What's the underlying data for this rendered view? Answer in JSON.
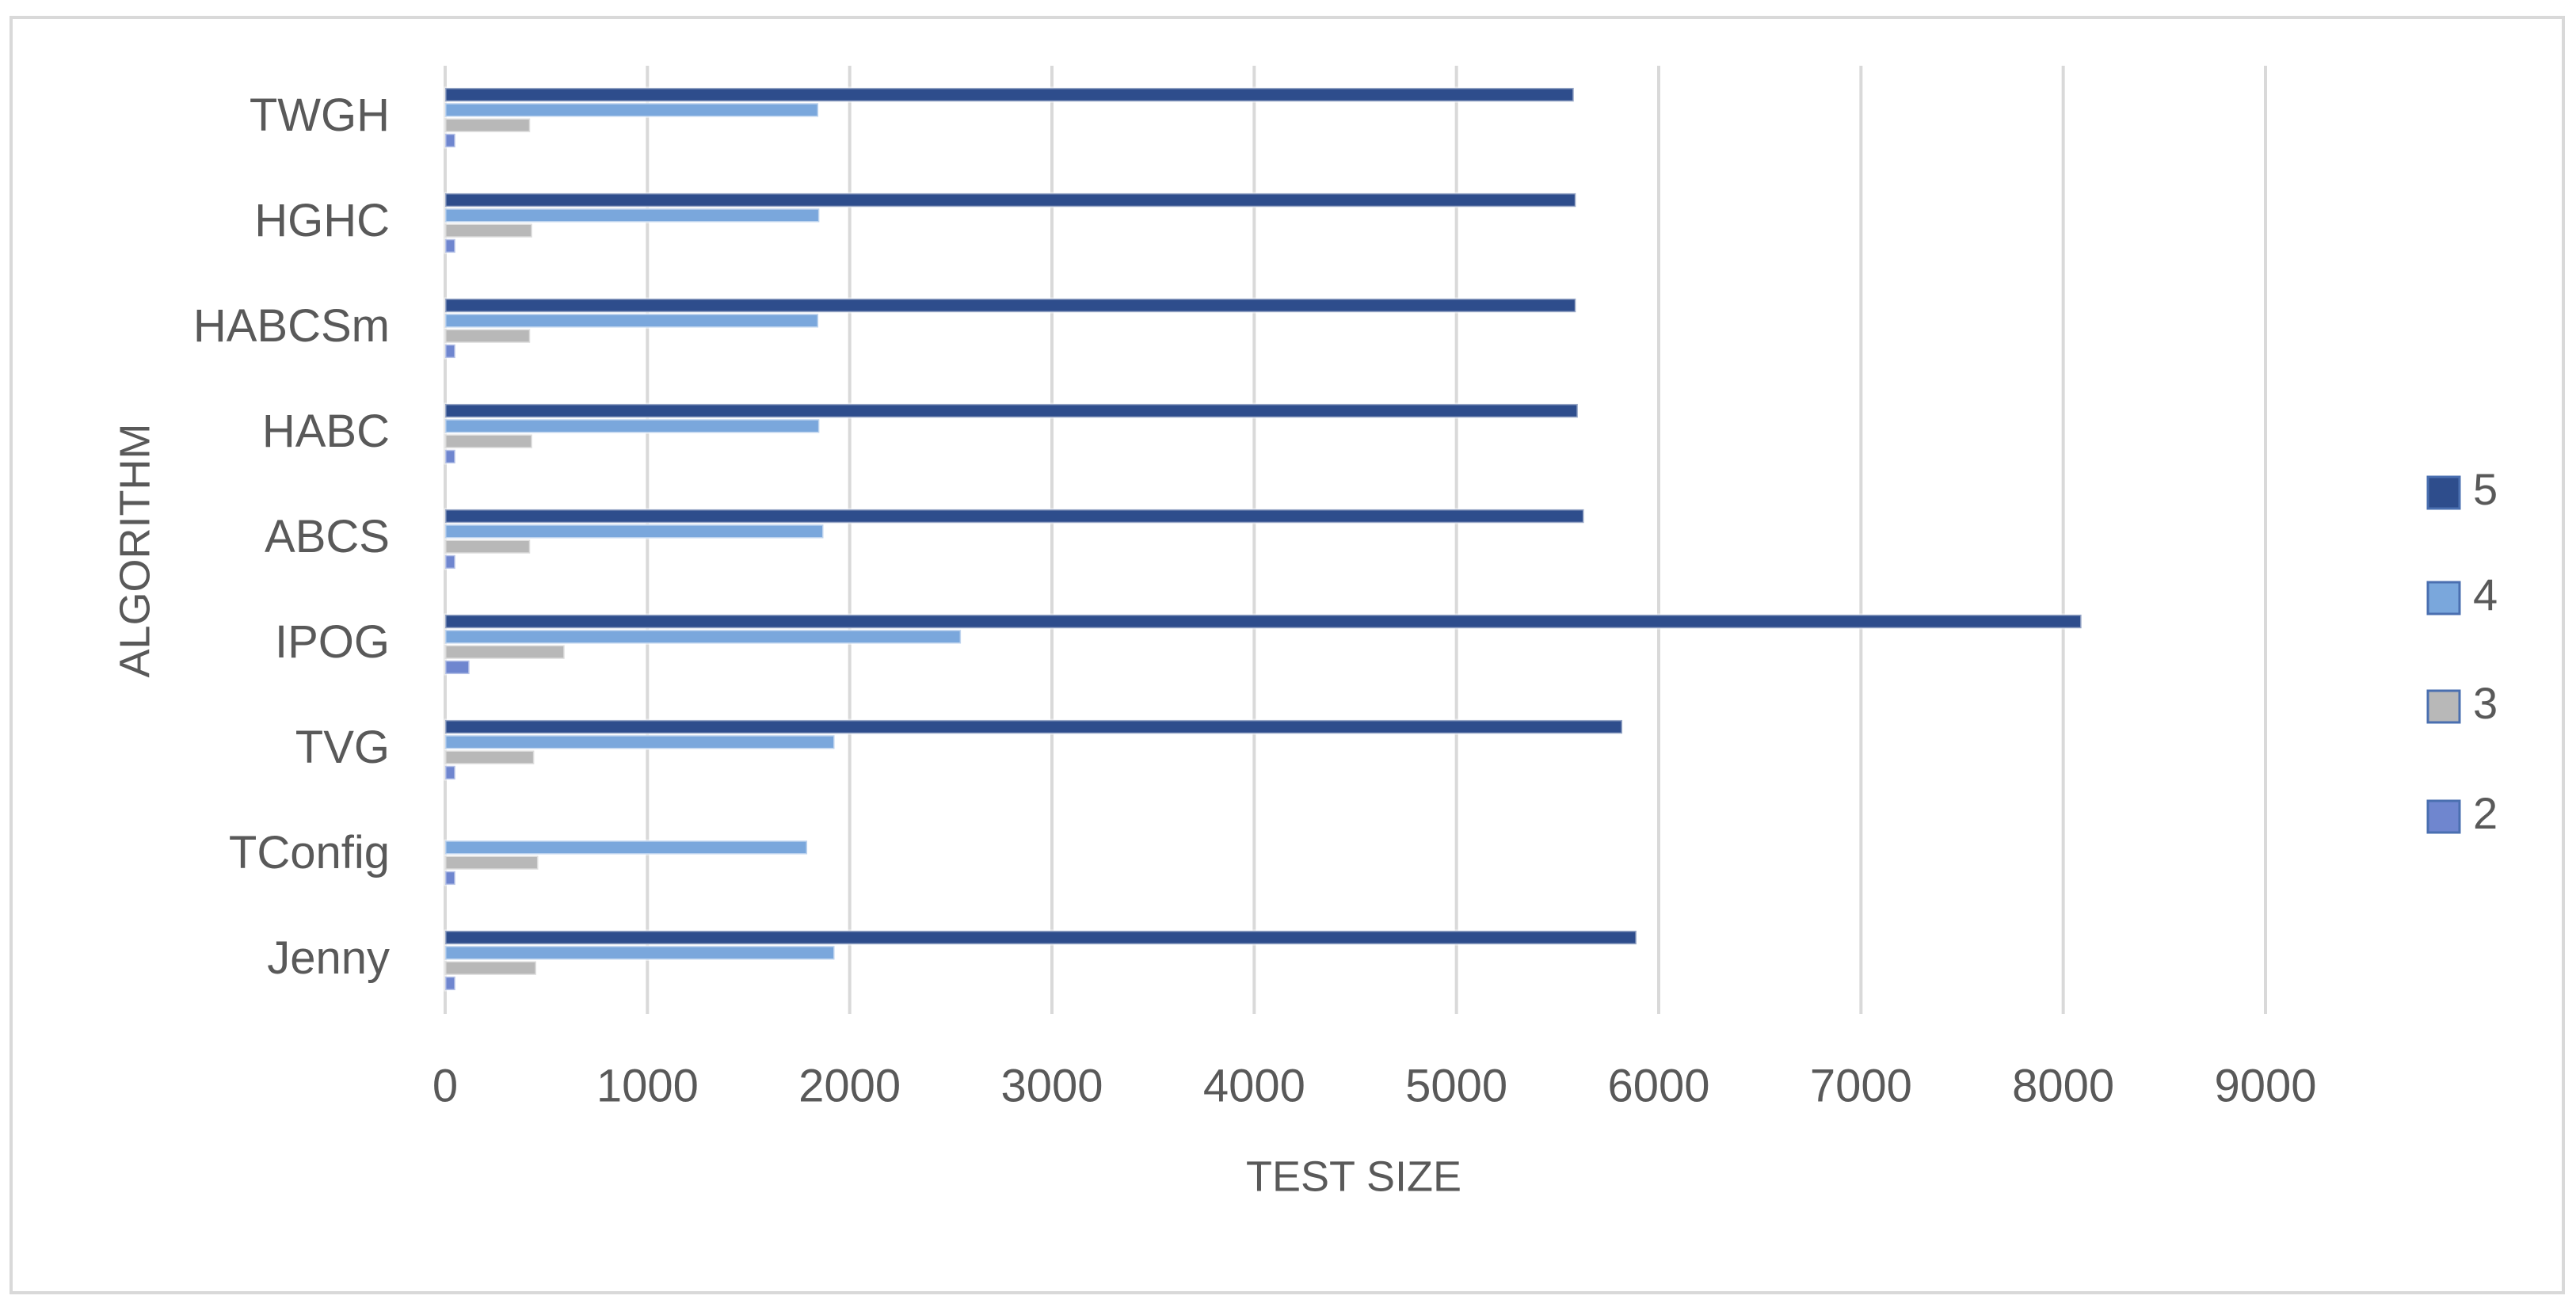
{
  "chart_data": {
    "type": "bar",
    "orientation": "horizontal",
    "x_label": "TEST SIZE",
    "y_label": "ALGORITHM",
    "categories": [
      "TWGH",
      "HGHC ",
      "HABCSm",
      "HABC",
      "ABCS",
      "IPOG",
      "TVG",
      "TConfig",
      "Jenny"
    ],
    "series": [
      {
        "name": "5",
        "color": "#2e4d8c",
        "values": [
          5580,
          5590,
          5590,
          5600,
          5630,
          8090,
          5820,
          null,
          5890
        ]
      },
      {
        "name": "4",
        "color": "#7aa7dc",
        "values": [
          1845,
          1850,
          1845,
          1850,
          1870,
          2550,
          1925,
          1790,
          1925
        ]
      },
      {
        "name": "3",
        "color": "#b8b8b8",
        "values": [
          420,
          430,
          420,
          430,
          420,
          590,
          440,
          460,
          450
        ]
      },
      {
        "name": "2",
        "color": "#6f86cf",
        "values": [
          50,
          50,
          50,
          50,
          50,
          120,
          50,
          50,
          50
        ]
      }
    ],
    "xlim": [
      0,
      9000
    ],
    "xticks": [
      0,
      1000,
      2000,
      3000,
      4000,
      5000,
      6000,
      7000,
      8000,
      9000
    ],
    "grid": true,
    "legend": "right"
  }
}
